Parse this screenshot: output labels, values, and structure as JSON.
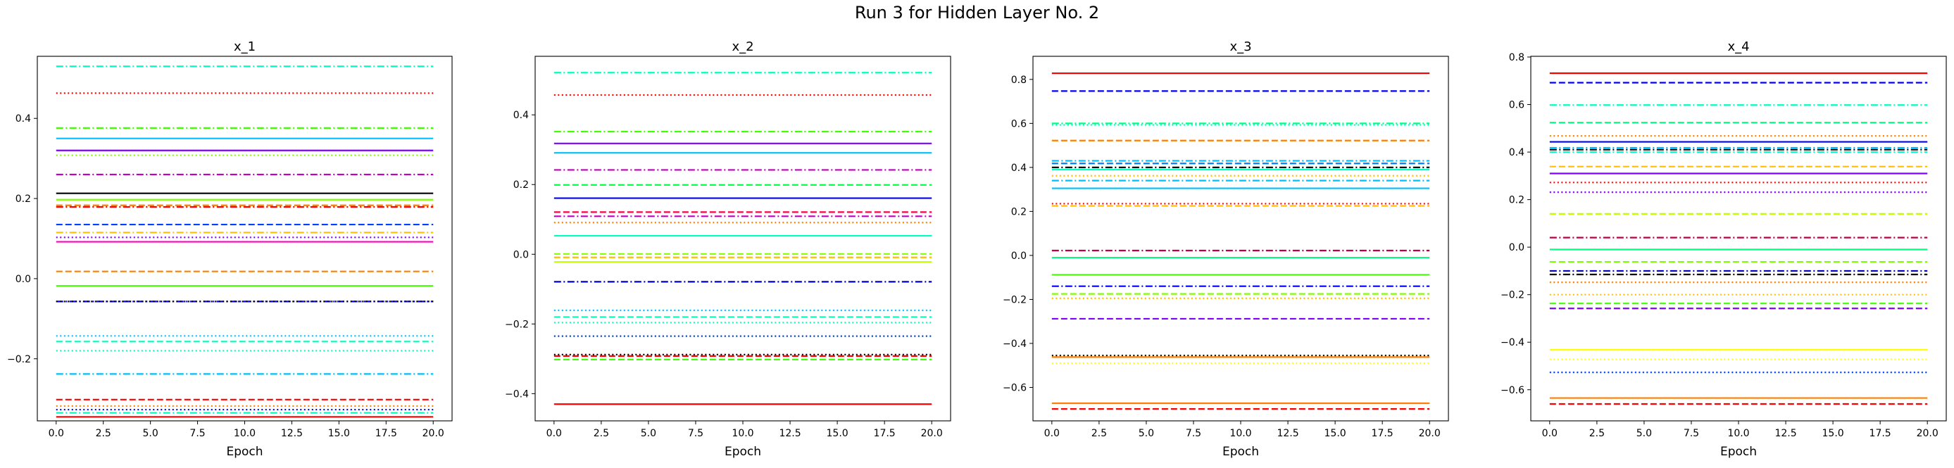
{
  "figure": {
    "suptitle": "Run 3 for Hidden Layer No. 2"
  },
  "chart_data": [
    {
      "type": "line",
      "title": "x_1",
      "xlabel": "Epoch",
      "ylabel": "",
      "xlim": [
        -1,
        21
      ],
      "ylim": [
        -0.355,
        0.555
      ],
      "xticks": [
        0.0,
        2.5,
        5.0,
        7.5,
        10.0,
        12.5,
        15.0,
        17.5,
        20.0
      ],
      "xtick_labels": [
        "0.0",
        "2.5",
        "5.0",
        "7.5",
        "10.0",
        "12.5",
        "15.0",
        "17.5",
        "20.0"
      ],
      "yticks": [
        -0.2,
        0.0,
        0.2,
        0.4
      ],
      "ytick_labels": [
        "−0.2",
        "0.0",
        "0.2",
        "0.4"
      ],
      "x": [
        0,
        20
      ],
      "series": [
        {
          "value": 0.53,
          "color": "#00ffbf",
          "style": "dashdot"
        },
        {
          "value": 0.463,
          "color": "#ff0000",
          "style": "dotted"
        },
        {
          "value": 0.376,
          "color": "#40ff00",
          "style": "dashdot"
        },
        {
          "value": 0.35,
          "color": "#00bfff",
          "style": "solid"
        },
        {
          "value": 0.32,
          "color": "#8000ff",
          "style": "solid"
        },
        {
          "value": 0.308,
          "color": "#80ff00",
          "style": "dotted"
        },
        {
          "value": 0.26,
          "color": "#bf00bf",
          "style": "dashdot"
        },
        {
          "value": 0.213,
          "color": "#000000",
          "style": "solid"
        },
        {
          "value": 0.197,
          "color": "#80ff00",
          "style": "solid"
        },
        {
          "value": 0.183,
          "color": "#ff8000",
          "style": "dashed"
        },
        {
          "value": 0.179,
          "color": "#ff0000",
          "style": "dashdot"
        },
        {
          "value": 0.135,
          "color": "#0040ff",
          "style": "dashed"
        },
        {
          "value": 0.115,
          "color": "#ffbf00",
          "style": "dashdot"
        },
        {
          "value": 0.103,
          "color": "#8000ff",
          "style": "dotted"
        },
        {
          "value": 0.092,
          "color": "#ff00bf",
          "style": "solid"
        },
        {
          "value": 0.018,
          "color": "#ff8000",
          "style": "dashed"
        },
        {
          "value": -0.018,
          "color": "#40ff00",
          "style": "solid"
        },
        {
          "value": -0.057,
          "color": "#0000ff",
          "style": "dashdot"
        },
        {
          "value": -0.057,
          "color": "#000000",
          "style": "dotted"
        },
        {
          "value": -0.143,
          "color": "#00bfff",
          "style": "dotted"
        },
        {
          "value": -0.157,
          "color": "#00ffbf",
          "style": "dashed"
        },
        {
          "value": -0.18,
          "color": "#00ffbf",
          "style": "dotted"
        },
        {
          "value": -0.238,
          "color": "#00bfff",
          "style": "dashdot"
        },
        {
          "value": -0.302,
          "color": "#ff0000",
          "style": "dashed"
        },
        {
          "value": -0.318,
          "color": "#ff8000",
          "style": "dotted"
        },
        {
          "value": -0.327,
          "color": "#0000ff",
          "style": "dotted"
        },
        {
          "value": -0.335,
          "color": "#00ffbf",
          "style": "dashdot"
        },
        {
          "value": -0.345,
          "color": "#ff0000",
          "style": "solid"
        }
      ]
    },
    {
      "type": "line",
      "title": "x_2",
      "xlabel": "Epoch",
      "ylabel": "",
      "xlim": [
        -1,
        21
      ],
      "ylim": [
        -0.478,
        0.568
      ],
      "xticks": [
        0.0,
        2.5,
        5.0,
        7.5,
        10.0,
        12.5,
        15.0,
        17.5,
        20.0
      ],
      "xtick_labels": [
        "0.0",
        "2.5",
        "5.0",
        "7.5",
        "10.0",
        "12.5",
        "15.0",
        "17.5",
        "20.0"
      ],
      "yticks": [
        -0.4,
        -0.2,
        0.0,
        0.2,
        0.4
      ],
      "ytick_labels": [
        "−0.4",
        "−0.2",
        "0.0",
        "0.2",
        "0.4"
      ],
      "x": [
        0,
        20
      ],
      "series": [
        {
          "value": 0.521,
          "color": "#00ffbf",
          "style": "dashdot"
        },
        {
          "value": 0.457,
          "color": "#ff0000",
          "style": "dotted"
        },
        {
          "value": 0.352,
          "color": "#40ff00",
          "style": "dashdot"
        },
        {
          "value": 0.318,
          "color": "#8000ff",
          "style": "solid"
        },
        {
          "value": 0.291,
          "color": "#00bfff",
          "style": "solid"
        },
        {
          "value": 0.242,
          "color": "#bf00bf",
          "style": "dashdot"
        },
        {
          "value": 0.199,
          "color": "#00ff40",
          "style": "dashed"
        },
        {
          "value": 0.161,
          "color": "#0000ff",
          "style": "solid"
        },
        {
          "value": 0.121,
          "color": "#ff0040",
          "style": "dashed"
        },
        {
          "value": 0.109,
          "color": "#bf00bf",
          "style": "dashdot"
        },
        {
          "value": 0.091,
          "color": "#ff8000",
          "style": "dotted"
        },
        {
          "value": 0.053,
          "color": "#00ffbf",
          "style": "solid"
        },
        {
          "value": 0.001,
          "color": "#80ff00",
          "style": "dashed"
        },
        {
          "value": -0.009,
          "color": "#ffbf00",
          "style": "dashed"
        },
        {
          "value": -0.022,
          "color": "#bfff00",
          "style": "solid"
        },
        {
          "value": -0.079,
          "color": "#0000bf",
          "style": "dashdot"
        },
        {
          "value": -0.161,
          "color": "#00bfff",
          "style": "dotted"
        },
        {
          "value": -0.18,
          "color": "#00ffbf",
          "style": "dashed"
        },
        {
          "value": -0.196,
          "color": "#00ffbf",
          "style": "dotted"
        },
        {
          "value": -0.235,
          "color": "#0040bf",
          "style": "dotted"
        },
        {
          "value": -0.288,
          "color": "#000000",
          "style": "dotted"
        },
        {
          "value": -0.292,
          "color": "#ff0000",
          "style": "dashed"
        },
        {
          "value": -0.302,
          "color": "#40ff00",
          "style": "dashed"
        },
        {
          "value": -0.43,
          "color": "#ff0000",
          "style": "solid"
        }
      ]
    },
    {
      "type": "line",
      "title": "x_3",
      "xlabel": "Epoch",
      "ylabel": "",
      "xlim": [
        -1,
        21
      ],
      "ylim": [
        -0.752,
        0.905
      ],
      "xticks": [
        0.0,
        2.5,
        5.0,
        7.5,
        10.0,
        12.5,
        15.0,
        17.5,
        20.0
      ],
      "xtick_labels": [
        "0.0",
        "2.5",
        "5.0",
        "7.5",
        "10.0",
        "12.5",
        "15.0",
        "17.5",
        "20.0"
      ],
      "yticks": [
        -0.6,
        -0.4,
        -0.2,
        0.0,
        0.2,
        0.4,
        0.6,
        0.8
      ],
      "ytick_labels": [
        "−0.6",
        "−0.4",
        "−0.2",
        "0.0",
        "0.2",
        "0.4",
        "0.6",
        "0.8"
      ],
      "x": [
        0,
        20
      ],
      "series": [
        {
          "value": 0.828,
          "color": "#ff0000",
          "style": "solid"
        },
        {
          "value": 0.747,
          "color": "#0000ff",
          "style": "dashed"
        },
        {
          "value": 0.6,
          "color": "#00ff80",
          "style": "dashdot"
        },
        {
          "value": 0.593,
          "color": "#00ffbf",
          "style": "dotted"
        },
        {
          "value": 0.522,
          "color": "#ff8000",
          "style": "dashed"
        },
        {
          "value": 0.43,
          "color": "#00bfff",
          "style": "dashdot"
        },
        {
          "value": 0.418,
          "color": "#0080ff",
          "style": "dashed"
        },
        {
          "value": 0.4,
          "color": "#000000",
          "style": "dashdot"
        },
        {
          "value": 0.39,
          "color": "#00ffbf",
          "style": "solid"
        },
        {
          "value": 0.362,
          "color": "#ffbf00",
          "style": "dotted"
        },
        {
          "value": 0.34,
          "color": "#00bfff",
          "style": "dashdot"
        },
        {
          "value": 0.305,
          "color": "#00bfff",
          "style": "solid"
        },
        {
          "value": 0.235,
          "color": "#ff0000",
          "style": "dotted"
        },
        {
          "value": 0.225,
          "color": "#ffbf00",
          "style": "dashed"
        },
        {
          "value": 0.022,
          "color": "#bf0040",
          "style": "dashdot"
        },
        {
          "value": -0.01,
          "color": "#00ff80",
          "style": "solid"
        },
        {
          "value": -0.088,
          "color": "#40ff00",
          "style": "solid"
        },
        {
          "value": -0.14,
          "color": "#0000ff",
          "style": "dashdot"
        },
        {
          "value": -0.175,
          "color": "#80ff00",
          "style": "dashed"
        },
        {
          "value": -0.195,
          "color": "#ffbf00",
          "style": "dotted"
        },
        {
          "value": -0.288,
          "color": "#8000ff",
          "style": "dashed"
        },
        {
          "value": -0.455,
          "color": "#000000",
          "style": "dotted"
        },
        {
          "value": -0.462,
          "color": "#ff8000",
          "style": "solid"
        },
        {
          "value": -0.49,
          "color": "#ffff00",
          "style": "dotted"
        },
        {
          "value": -0.672,
          "color": "#ff8000",
          "style": "solid"
        },
        {
          "value": -0.698,
          "color": "#ff0000",
          "style": "dashed"
        }
      ]
    },
    {
      "type": "line",
      "title": "x_4",
      "xlabel": "Epoch",
      "ylabel": "",
      "xlim": [
        -1,
        21
      ],
      "ylim": [
        -0.731,
        0.803
      ],
      "xticks": [
        0.0,
        2.5,
        5.0,
        7.5,
        10.0,
        12.5,
        15.0,
        17.5,
        20.0
      ],
      "xtick_labels": [
        "0.0",
        "2.5",
        "5.0",
        "7.5",
        "10.0",
        "12.5",
        "15.0",
        "17.5",
        "20.0"
      ],
      "yticks": [
        -0.6,
        -0.4,
        -0.2,
        0.0,
        0.2,
        0.4,
        0.6,
        0.8
      ],
      "ytick_labels": [
        "−0.6",
        "−0.4",
        "−0.2",
        "0.0",
        "0.2",
        "0.4",
        "0.6",
        "0.8"
      ],
      "x": [
        0,
        20
      ],
      "series": [
        {
          "value": 0.732,
          "color": "#ff0000",
          "style": "solid"
        },
        {
          "value": 0.692,
          "color": "#0000ff",
          "style": "dashed"
        },
        {
          "value": 0.598,
          "color": "#00ffbf",
          "style": "dashdot"
        },
        {
          "value": 0.524,
          "color": "#00ff80",
          "style": "dashed"
        },
        {
          "value": 0.468,
          "color": "#ff8000",
          "style": "dotted"
        },
        {
          "value": 0.443,
          "color": "#0000ff",
          "style": "solid"
        },
        {
          "value": 0.418,
          "color": "#00bfff",
          "style": "dashdot"
        },
        {
          "value": 0.41,
          "color": "#000000",
          "style": "dashdot"
        },
        {
          "value": 0.4,
          "color": "#00ffbf",
          "style": "dashdot"
        },
        {
          "value": 0.339,
          "color": "#ffbf00",
          "style": "dashed"
        },
        {
          "value": 0.31,
          "color": "#8000ff",
          "style": "solid"
        },
        {
          "value": 0.272,
          "color": "#ff0000",
          "style": "dotted"
        },
        {
          "value": 0.231,
          "color": "#8000ff",
          "style": "dotted"
        },
        {
          "value": 0.14,
          "color": "#bfff00",
          "style": "dashed"
        },
        {
          "value": 0.04,
          "color": "#bf0040",
          "style": "dashdot"
        },
        {
          "value": -0.01,
          "color": "#00ff80",
          "style": "solid"
        },
        {
          "value": -0.062,
          "color": "#80ff00",
          "style": "dashed"
        },
        {
          "value": -0.1,
          "color": "#0000bf",
          "style": "dashdot"
        },
        {
          "value": -0.115,
          "color": "#000000",
          "style": "dashdot"
        },
        {
          "value": -0.148,
          "color": "#ff8000",
          "style": "dotted"
        },
        {
          "value": -0.2,
          "color": "#ffbf00",
          "style": "dotted"
        },
        {
          "value": -0.237,
          "color": "#40ff00",
          "style": "dashed"
        },
        {
          "value": -0.258,
          "color": "#8000ff",
          "style": "dashed"
        },
        {
          "value": -0.432,
          "color": "#ffff00",
          "style": "solid"
        },
        {
          "value": -0.472,
          "color": "#ffff00",
          "style": "dotted"
        },
        {
          "value": -0.527,
          "color": "#0040ff",
          "style": "dotted"
        },
        {
          "value": -0.635,
          "color": "#ff8000",
          "style": "solid"
        },
        {
          "value": -0.66,
          "color": "#ff0000",
          "style": "dashed"
        }
      ]
    }
  ]
}
